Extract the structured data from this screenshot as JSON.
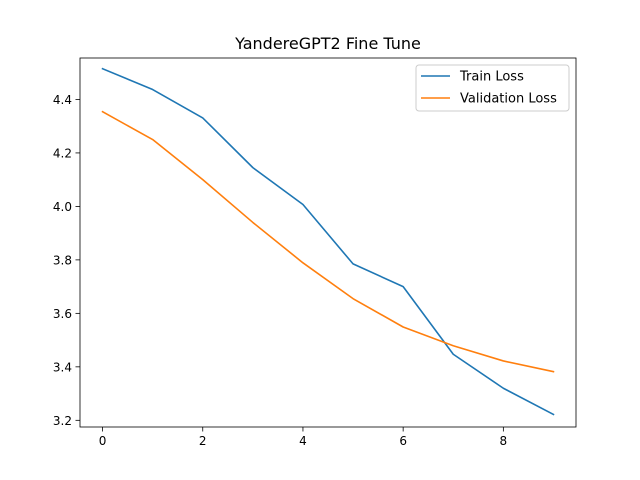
{
  "chart_data": {
    "type": "line",
    "title": "YandereGPT2 Fine Tune",
    "xlabel": "",
    "ylabel": "",
    "x": [
      0,
      1,
      2,
      3,
      4,
      5,
      6,
      7,
      8,
      9
    ],
    "xlim": [
      -0.45,
      9.45
    ],
    "ylim": [
      3.175,
      4.555
    ],
    "xticks": [
      0,
      2,
      4,
      6,
      8
    ],
    "yticks": [
      3.2,
      3.4,
      3.6,
      3.8,
      4.0,
      4.2,
      4.4
    ],
    "ytick_labels": [
      "3.2",
      "3.4",
      "3.6",
      "3.8",
      "4.0",
      "4.2",
      "4.4"
    ],
    "grid": false,
    "legend_position": "top-right",
    "series": [
      {
        "name": "Train Loss",
        "color": "#1f77b4",
        "values": [
          4.515,
          4.437,
          4.331,
          4.145,
          4.007,
          3.785,
          3.7,
          3.447,
          3.32,
          3.222
        ]
      },
      {
        "name": "Validation Loss",
        "color": "#ff7f0e",
        "values": [
          4.354,
          4.25,
          4.1,
          3.94,
          3.789,
          3.655,
          3.549,
          3.479,
          3.422,
          3.382
        ]
      }
    ]
  }
}
